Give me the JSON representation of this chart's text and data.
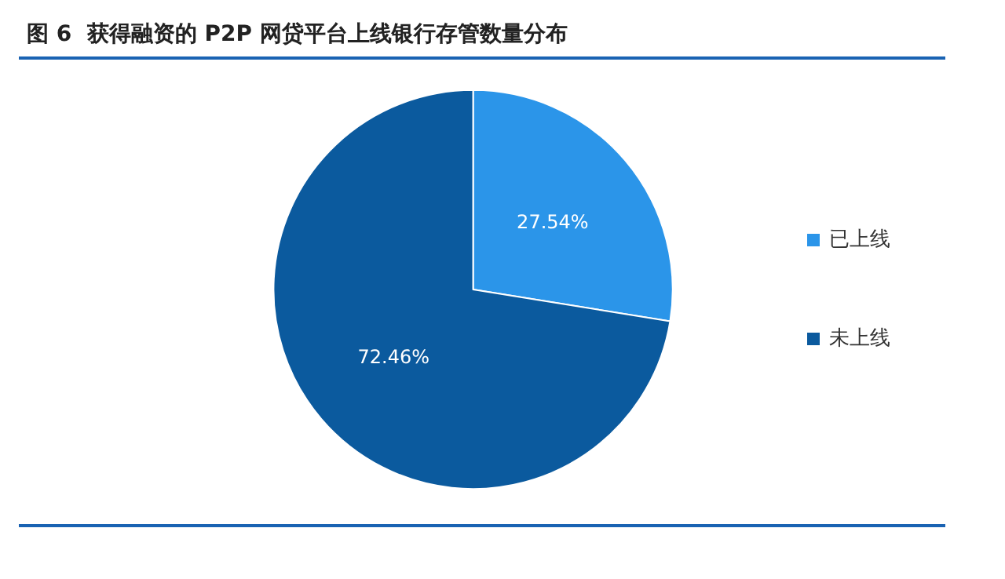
{
  "chart_data": {
    "type": "pie",
    "title": "图 6  获得融资的 P2P 网贷平台上线银行存管数量分布",
    "categories": [
      "已上线",
      "未上线"
    ],
    "values": [
      27.54,
      72.46
    ],
    "colors": [
      "#2b95e9",
      "#0b5a9e"
    ],
    "value_labels": [
      "27.54%",
      "72.46%"
    ],
    "legend": "right"
  }
}
